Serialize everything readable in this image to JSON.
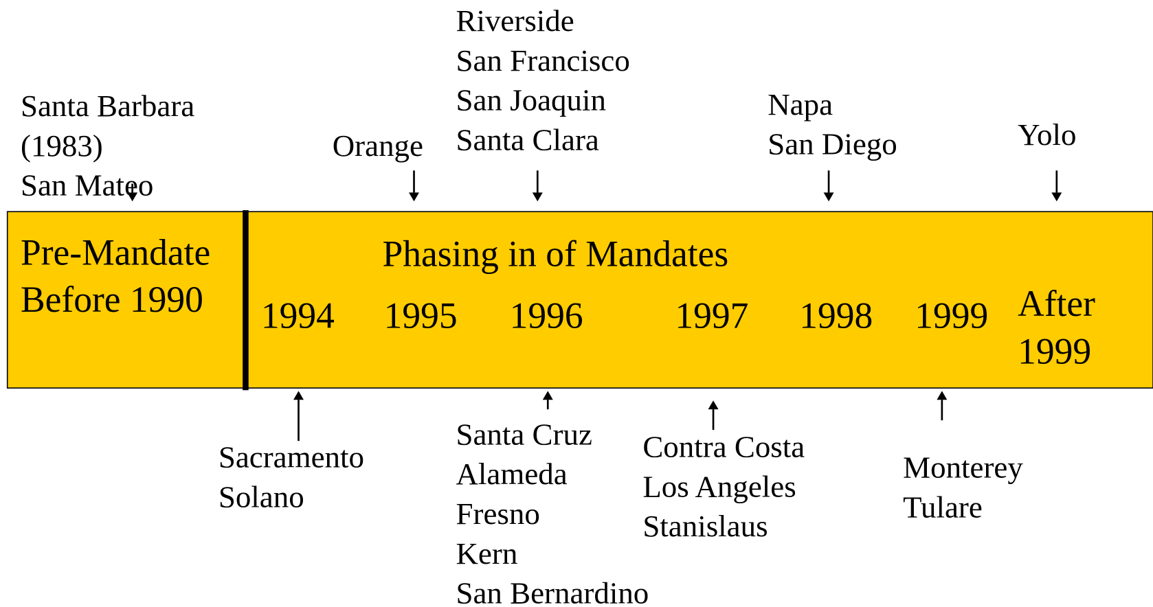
{
  "bar": {
    "pre_mandate": [
      "Pre-Mandate",
      "Before 1990"
    ],
    "title": "Phasing in of Mandates",
    "years": [
      "1994",
      "1995",
      "1996",
      "1997",
      "1998",
      "1999"
    ],
    "after": [
      "After",
      "1999"
    ]
  },
  "above": [
    {
      "lines": [
        "Santa Barbara",
        "(1983)",
        "San Mateo"
      ]
    },
    {
      "lines": [
        "Orange"
      ]
    },
    {
      "lines": [
        "Riverside",
        "San Francisco",
        "San Joaquin",
        "Santa Clara"
      ]
    },
    {
      "lines": [
        "Napa",
        "San Diego"
      ]
    },
    {
      "lines": [
        "Yolo"
      ]
    }
  ],
  "below": [
    {
      "lines": [
        "Sacramento",
        "Solano"
      ]
    },
    {
      "lines": [
        "Santa Cruz",
        "Alameda",
        "Fresno",
        "Kern",
        "San Bernardino"
      ]
    },
    {
      "lines": [
        "Contra Costa",
        "Los Angeles",
        "Stanislaus"
      ]
    },
    {
      "lines": [
        "Monterey",
        "Tulare"
      ]
    }
  ]
}
